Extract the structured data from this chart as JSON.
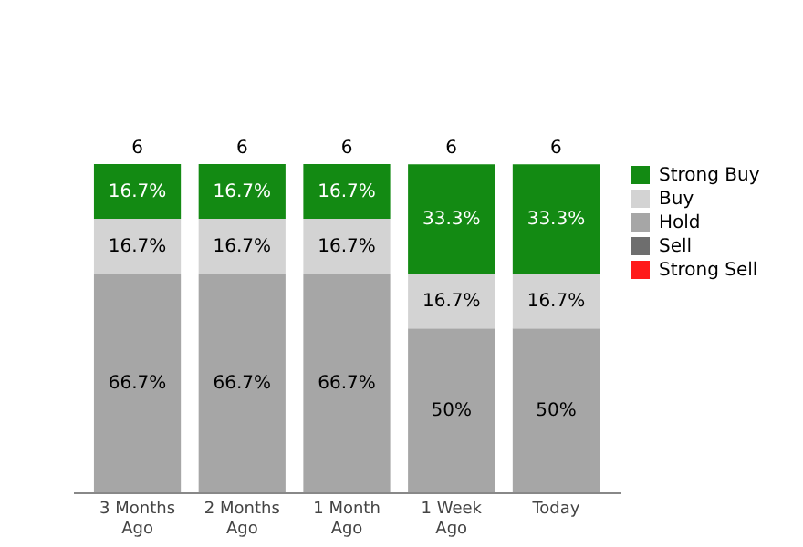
{
  "chart_data": {
    "type": "bar",
    "stacked": true,
    "legend": "right",
    "categories": [
      "3 Months\nAgo",
      "2 Months\nAgo",
      "1 Month\nAgo",
      "1 Week\nAgo",
      "Today"
    ],
    "series": [
      {
        "name": "Strong Sell",
        "color": "#ff1a1a",
        "values": [
          null,
          null,
          null,
          null,
          null
        ]
      },
      {
        "name": "Sell",
        "color": "#6e6e6e",
        "values": [
          null,
          null,
          null,
          null,
          null
        ]
      },
      {
        "name": "Hold",
        "color": "#a6a6a6",
        "values": [
          66.7,
          66.7,
          66.7,
          50,
          50
        ],
        "value_labels": [
          "66.7%",
          "66.7%",
          "66.7%",
          "50%",
          "50%"
        ]
      },
      {
        "name": "Buy",
        "color": "#d3d3d3",
        "values": [
          16.7,
          16.7,
          16.7,
          16.7,
          16.7
        ],
        "value_labels": [
          "16.7%",
          "16.7%",
          "16.7%",
          "16.7%",
          "16.7%"
        ]
      },
      {
        "name": "Strong Buy",
        "color": "#138a13",
        "values": [
          16.7,
          16.7,
          16.7,
          33.3,
          33.3
        ],
        "value_labels": [
          "16.7%",
          "16.7%",
          "16.7%",
          "33.3%",
          "33.3%"
        ]
      }
    ],
    "annotations": [
      "6",
      "6",
      "6",
      "6",
      "6"
    ]
  }
}
